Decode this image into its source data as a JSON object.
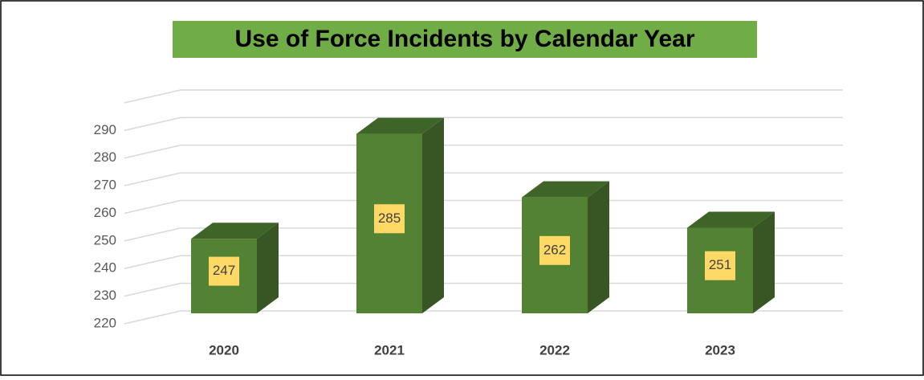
{
  "chart_data": {
    "type": "bar3d",
    "title": "Use of Force Incidents by Calendar Year",
    "categories": [
      "2020",
      "2021",
      "2022",
      "2023"
    ],
    "values": [
      247,
      285,
      262,
      251
    ],
    "color": "#548235",
    "ylim": [
      220,
      300
    ],
    "yticks": [
      220,
      230,
      240,
      250,
      260,
      270,
      280,
      290
    ],
    "grid": true
  }
}
